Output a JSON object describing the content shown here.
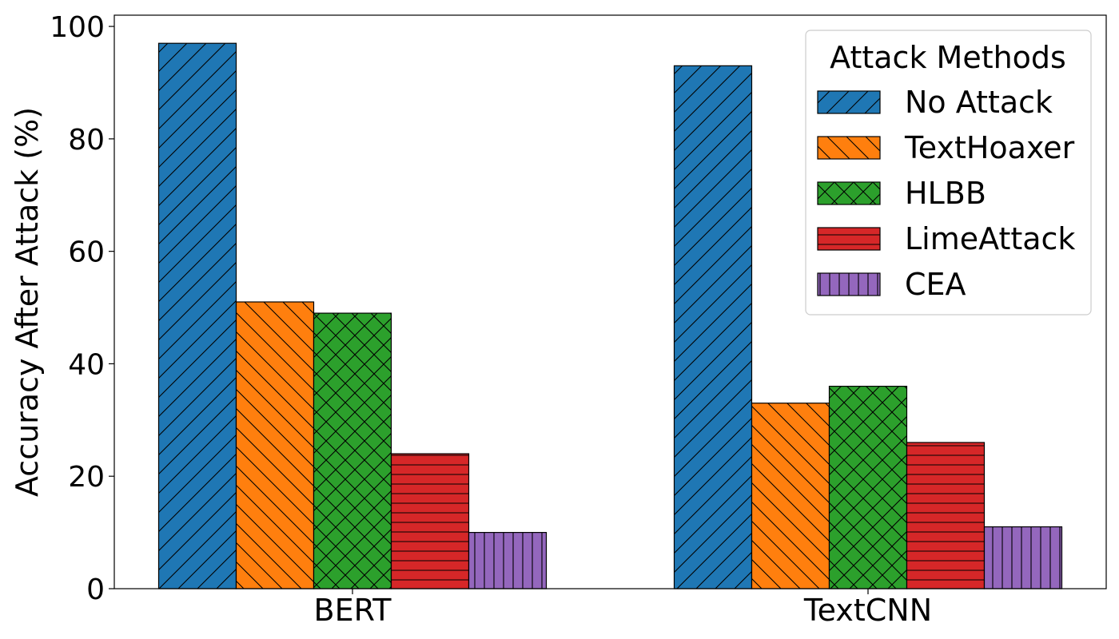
{
  "chart_data": {
    "type": "bar",
    "title": "",
    "xlabel": "",
    "ylabel": "Accuracy After Attack (%)",
    "ylim": [
      0,
      102
    ],
    "yticks": [
      0,
      20,
      40,
      60,
      80,
      100
    ],
    "categories": [
      "BERT",
      "TextCNN"
    ],
    "series": [
      {
        "name": "No Attack",
        "values": [
          97,
          93
        ],
        "color": "#1f77b4",
        "hatch": "diagonal-forward"
      },
      {
        "name": "TextHoaxer",
        "values": [
          51,
          33
        ],
        "color": "#ff7f0e",
        "hatch": "diagonal-back"
      },
      {
        "name": "HLBB",
        "values": [
          49,
          36
        ],
        "color": "#2ca02c",
        "hatch": "cross"
      },
      {
        "name": "LimeAttack",
        "values": [
          24,
          26
        ],
        "color": "#d62728",
        "hatch": "horizontal"
      },
      {
        "name": "CEA",
        "values": [
          10,
          11
        ],
        "color": "#9467bd",
        "hatch": "vertical"
      }
    ],
    "legend": {
      "title": "Attack Methods",
      "placement": "top-right"
    },
    "grid": false
  }
}
